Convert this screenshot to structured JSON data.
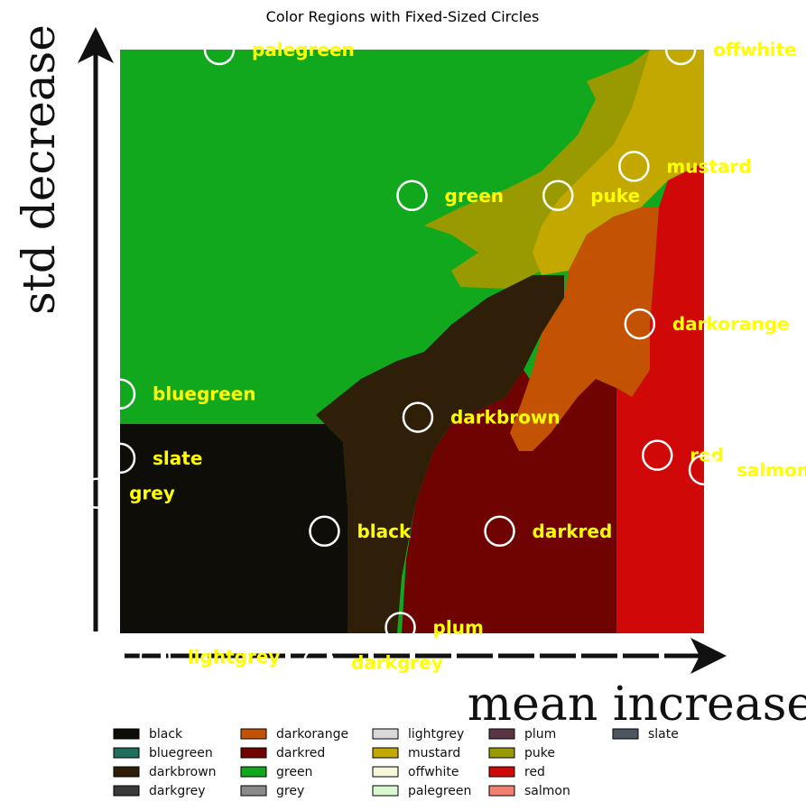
{
  "chart_data": {
    "type": "scatter",
    "title": "Color Regions with Fixed-Sized Circles",
    "xlabel": "mean increase",
    "ylabel": "std decrease",
    "xlim": [
      0,
      1
    ],
    "ylim": [
      0,
      1
    ],
    "grid": false,
    "legend_placement": "bottom",
    "points": [
      {
        "label": "palegreen",
        "x": 0.17,
        "y": 1.0
      },
      {
        "label": "offwhite",
        "x": 0.96,
        "y": 1.0
      },
      {
        "label": "mustard",
        "x": 0.88,
        "y": 0.8
      },
      {
        "label": "green",
        "x": 0.5,
        "y": 0.75
      },
      {
        "label": "puke",
        "x": 0.75,
        "y": 0.75
      },
      {
        "label": "darkorange",
        "x": 0.89,
        "y": 0.53
      },
      {
        "label": "bluegreen",
        "x": 0.0,
        "y": 0.41
      },
      {
        "label": "darkbrown",
        "x": 0.51,
        "y": 0.37
      },
      {
        "label": "slate",
        "x": 0.0,
        "y": 0.3
      },
      {
        "label": "red",
        "x": 0.92,
        "y": 0.305
      },
      {
        "label": "salmon",
        "x": 1.0,
        "y": 0.28
      },
      {
        "label": "grey",
        "x": -0.04,
        "y": 0.24
      },
      {
        "label": "black",
        "x": 0.35,
        "y": 0.175
      },
      {
        "label": "darkred",
        "x": 0.65,
        "y": 0.175
      },
      {
        "label": "plum",
        "x": 0.48,
        "y": 0.01
      },
      {
        "label": "lightgrey",
        "x": 0.06,
        "y": -0.04
      },
      {
        "label": "darkgrey",
        "x": 0.34,
        "y": -0.05
      }
    ],
    "legend": [
      {
        "name": "black",
        "color": "#0f0d08"
      },
      {
        "name": "bluegreen",
        "color": "#1f6e5c"
      },
      {
        "name": "darkbrown",
        "color": "#2f1f08"
      },
      {
        "name": "darkgrey",
        "color": "#3a3a3a"
      },
      {
        "name": "darkorange",
        "color": "#c45203"
      },
      {
        "name": "darkred",
        "color": "#6e0302"
      },
      {
        "name": "green",
        "color": "#12a81e"
      },
      {
        "name": "grey",
        "color": "#8a8a8a"
      },
      {
        "name": "lightgrey",
        "color": "#d8d8d8"
      },
      {
        "name": "mustard",
        "color": "#c2a800"
      },
      {
        "name": "offwhite",
        "color": "#f6f6d8"
      },
      {
        "name": "palegreen",
        "color": "#d8f8d0"
      },
      {
        "name": "plum",
        "color": "#5a3444"
      },
      {
        "name": "puke",
        "color": "#989a00"
      },
      {
        "name": "red",
        "color": "#d00808"
      },
      {
        "name": "salmon",
        "color": "#f08070"
      },
      {
        "name": "slate",
        "color": "#4a5560"
      }
    ]
  }
}
